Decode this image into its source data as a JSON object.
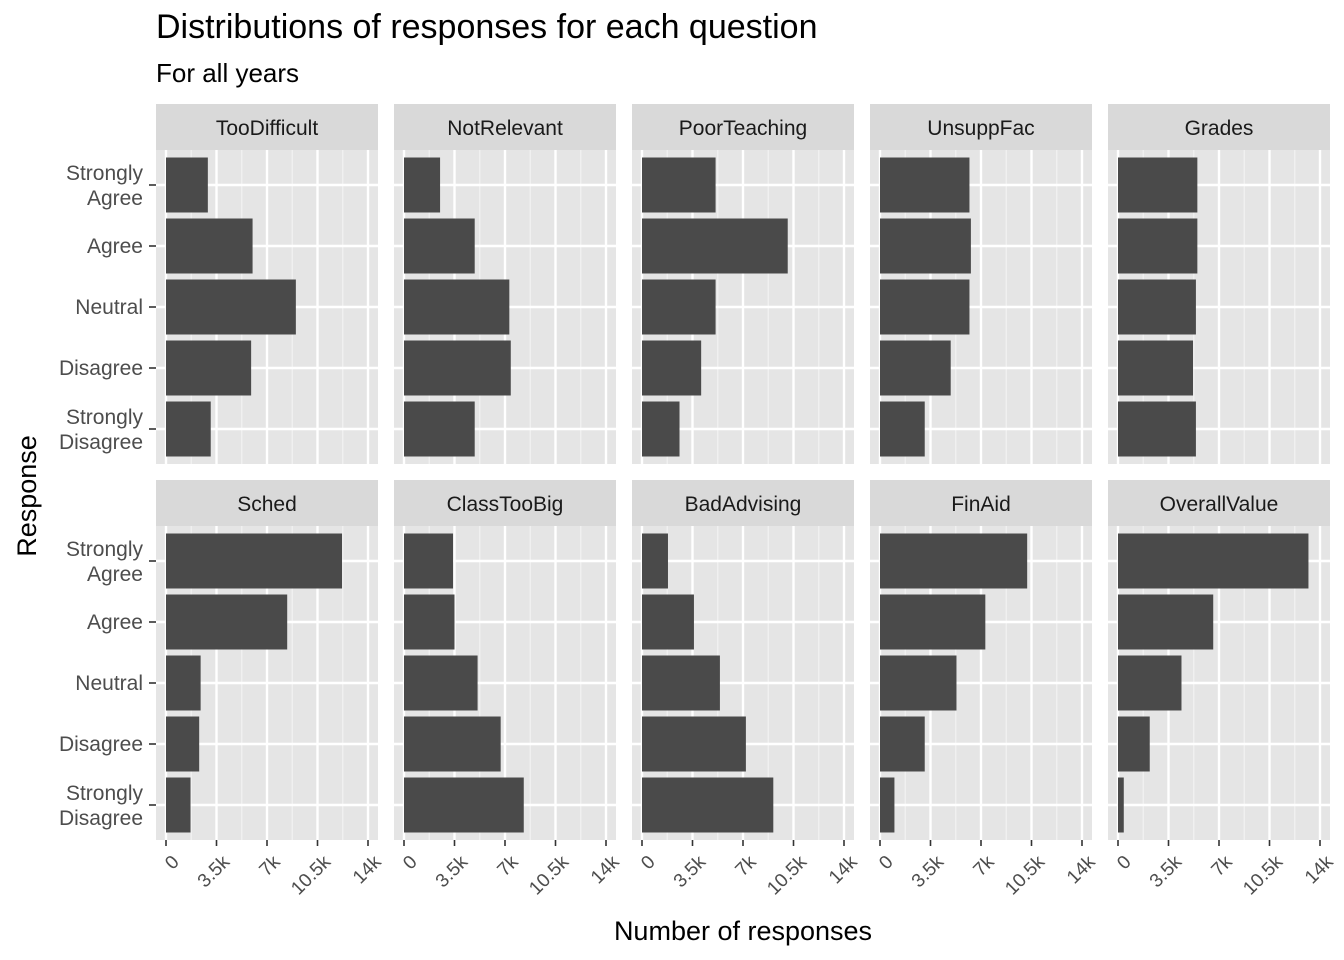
{
  "chart_data": {
    "type": "bar",
    "orientation": "horizontal",
    "facet": "grid 2x5",
    "title": "Distributions of responses for each question",
    "subtitle": "For all years",
    "xlabel": "Number of responses",
    "ylabel": "Response",
    "xlim": [
      0,
      14000
    ],
    "xticks": [
      0,
      3500,
      7000,
      10500,
      14000
    ],
    "xtick_labels": [
      "0",
      "3.5k",
      "7k",
      "10.5k",
      "14k"
    ],
    "categories": [
      "Strongly Agree",
      "Agree",
      "Neutral",
      "Disagree",
      "Strongly Disagree"
    ],
    "category_labels": [
      [
        "Strongly",
        "Agree"
      ],
      [
        "Agree"
      ],
      [
        "Neutral"
      ],
      [
        "Disagree"
      ],
      [
        "Strongly",
        "Disagree"
      ]
    ],
    "bar_color": "#4a4a4a",
    "panel_bg": "#e5e5e5",
    "strip_bg": "#d9d9d9",
    "grid": true,
    "panels": [
      {
        "name": "TooDifficult",
        "values": [
          2900,
          6000,
          9000,
          5900,
          3100
        ]
      },
      {
        "name": "NotRelevant",
        "values": [
          2500,
          4900,
          7300,
          7400,
          4900
        ]
      },
      {
        "name": "PoorTeaching",
        "values": [
          5100,
          10100,
          5100,
          4100,
          2600
        ]
      },
      {
        "name": "UnsuppFac",
        "values": [
          6200,
          6300,
          6200,
          4900,
          3100
        ]
      },
      {
        "name": "Grades",
        "values": [
          5500,
          5500,
          5400,
          5200,
          5400
        ]
      },
      {
        "name": "Sched",
        "values": [
          12200,
          8400,
          2400,
          2300,
          1700
        ]
      },
      {
        "name": "ClassTooBig",
        "values": [
          3400,
          3500,
          5100,
          6700,
          8300
        ]
      },
      {
        "name": "BadAdvising",
        "values": [
          1800,
          3600,
          5400,
          7200,
          9100
        ]
      },
      {
        "name": "FinAid",
        "values": [
          10200,
          7300,
          5300,
          3100,
          1000
        ]
      },
      {
        "name": "OverallValue",
        "values": [
          13200,
          6600,
          4400,
          2200,
          400
        ]
      }
    ]
  }
}
